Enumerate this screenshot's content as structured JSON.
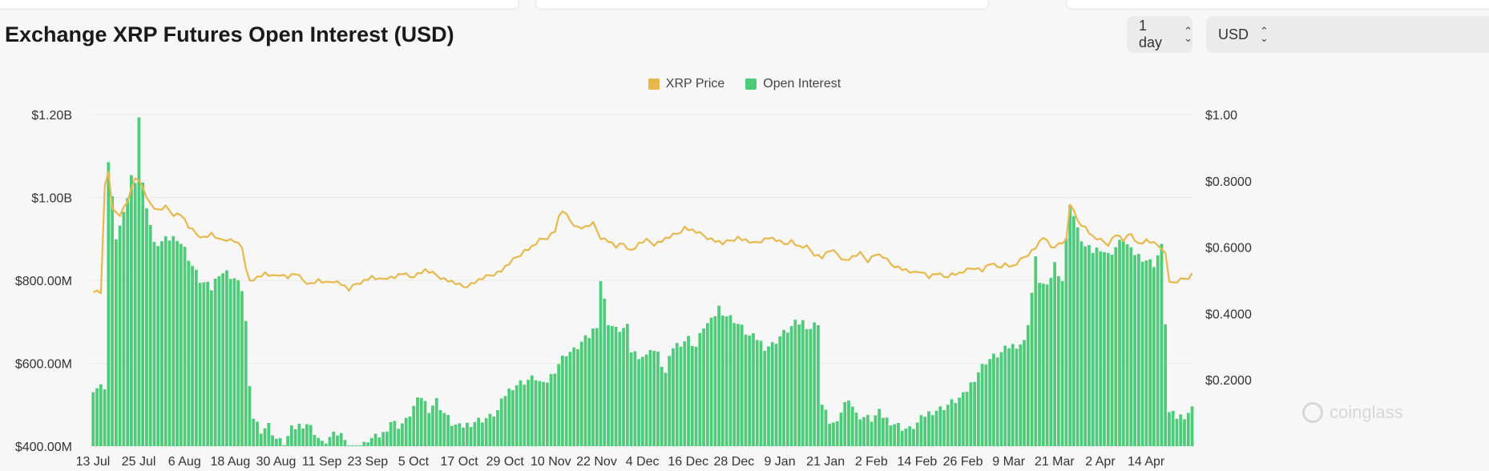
{
  "title": "Exchange XRP Futures Open Interest (USD)",
  "controls": {
    "interval": {
      "value": "1 day"
    },
    "currency": {
      "value": "USD"
    }
  },
  "icons": {
    "select": "chevron-up-down-icon"
  },
  "watermark": {
    "text": "coinglass"
  },
  "colors": {
    "price": "#e8b84d",
    "open_interest": "#4dcb78",
    "background": "#f7f7f7"
  },
  "chart_data": {
    "type": "bar",
    "title": "Exchange XRP Futures Open Interest (USD)",
    "legend": {
      "position": "top-center",
      "entries": [
        "XRP Price",
        "Open Interest"
      ]
    },
    "grid": true,
    "x_ticks": [
      "13 Jul",
      "25 Jul",
      "6 Aug",
      "18 Aug",
      "30 Aug",
      "11 Sep",
      "23 Sep",
      "5 Oct",
      "17 Oct",
      "29 Oct",
      "10 Nov",
      "22 Nov",
      "4 Dec",
      "16 Dec",
      "28 Dec",
      "9 Jan",
      "21 Jan",
      "2 Feb",
      "14 Feb",
      "26 Feb",
      "9 Mar",
      "21 Mar",
      "2 Apr",
      "14 Apr"
    ],
    "y_left": {
      "ticks": [
        "$400.00M",
        "$600.00M",
        "$800.00M",
        "$1.00B",
        "$1.20B"
      ],
      "tick_values": [
        400,
        600,
        800,
        1000,
        1200
      ],
      "range": [
        400,
        1200
      ],
      "unit": "M USD"
    },
    "y_right": {
      "ticks": [
        "$0.2000",
        "$0.4000",
        "$0.6000",
        "$0.8000",
        "$1.00"
      ],
      "tick_values": [
        0.2,
        0.4,
        0.6,
        0.8,
        1.0
      ],
      "range": [
        0,
        1.0
      ],
      "unit": "USD"
    },
    "start_date": "2023-07-13",
    "open_interest_knots": [
      [
        0,
        540
      ],
      [
        3,
        545
      ],
      [
        4,
        1085
      ],
      [
        6,
        905
      ],
      [
        8,
        955
      ],
      [
        10,
        1050
      ],
      [
        11,
        1045
      ],
      [
        12,
        1195
      ],
      [
        13,
        1030
      ],
      [
        16,
        885
      ],
      [
        20,
        900
      ],
      [
        22,
        905
      ],
      [
        24,
        875
      ],
      [
        26,
        835
      ],
      [
        28,
        800
      ],
      [
        31,
        780
      ],
      [
        33,
        820
      ],
      [
        35,
        818
      ],
      [
        37,
        805
      ],
      [
        39,
        780
      ],
      [
        40,
        700
      ],
      [
        41,
        535
      ],
      [
        42,
        470
      ],
      [
        44,
        440
      ],
      [
        46,
        450
      ],
      [
        48,
        418
      ],
      [
        50,
        405
      ],
      [
        52,
        440
      ],
      [
        54,
        450
      ],
      [
        56,
        455
      ],
      [
        58,
        435
      ],
      [
        60,
        405
      ],
      [
        62,
        420
      ],
      [
        64,
        430
      ],
      [
        66,
        425
      ],
      [
        67,
        400
      ],
      [
        68,
        380
      ],
      [
        70,
        390
      ],
      [
        72,
        415
      ],
      [
        74,
        420
      ],
      [
        76,
        430
      ],
      [
        78,
        460
      ],
      [
        80,
        450
      ],
      [
        82,
        460
      ],
      [
        84,
        495
      ],
      [
        86,
        520
      ],
      [
        88,
        490
      ],
      [
        90,
        510
      ],
      [
        92,
        480
      ],
      [
        94,
        455
      ],
      [
        96,
        445
      ],
      [
        100,
        460
      ],
      [
        104,
        470
      ],
      [
        106,
        485
      ],
      [
        108,
        525
      ],
      [
        110,
        545
      ],
      [
        114,
        560
      ],
      [
        116,
        565
      ],
      [
        118,
        545
      ],
      [
        120,
        570
      ],
      [
        122,
        600
      ],
      [
        124,
        625
      ],
      [
        126,
        630
      ],
      [
        128,
        650
      ],
      [
        130,
        665
      ],
      [
        132,
        695
      ],
      [
        133,
        800
      ],
      [
        135,
        700
      ],
      [
        137,
        680
      ],
      [
        140,
        685
      ],
      [
        141,
        630
      ],
      [
        143,
        620
      ],
      [
        145,
        615
      ],
      [
        146,
        640
      ],
      [
        148,
        620
      ],
      [
        150,
        575
      ],
      [
        152,
        640
      ],
      [
        154,
        650
      ],
      [
        156,
        660
      ],
      [
        158,
        640
      ],
      [
        160,
        690
      ],
      [
        162,
        700
      ],
      [
        164,
        735
      ],
      [
        166,
        715
      ],
      [
        168,
        705
      ],
      [
        170,
        685
      ],
      [
        172,
        665
      ],
      [
        174,
        660
      ],
      [
        176,
        640
      ],
      [
        178,
        645
      ],
      [
        180,
        665
      ],
      [
        182,
        680
      ],
      [
        184,
        695
      ],
      [
        186,
        700
      ],
      [
        188,
        685
      ],
      [
        190,
        700
      ],
      [
        191,
        500
      ],
      [
        193,
        460
      ],
      [
        195,
        450
      ],
      [
        196,
        485
      ],
      [
        198,
        520
      ],
      [
        200,
        475
      ],
      [
        202,
        470
      ],
      [
        204,
        465
      ],
      [
        206,
        480
      ],
      [
        208,
        465
      ],
      [
        210,
        455
      ],
      [
        212,
        445
      ],
      [
        214,
        440
      ],
      [
        216,
        455
      ],
      [
        218,
        475
      ],
      [
        220,
        485
      ],
      [
        222,
        490
      ],
      [
        224,
        500
      ],
      [
        226,
        510
      ],
      [
        228,
        520
      ],
      [
        230,
        550
      ],
      [
        232,
        580
      ],
      [
        234,
        605
      ],
      [
        236,
        615
      ],
      [
        238,
        625
      ],
      [
        240,
        640
      ],
      [
        242,
        645
      ],
      [
        244,
        650
      ],
      [
        245,
        700
      ],
      [
        246,
        770
      ],
      [
        247,
        850
      ],
      [
        248,
        800
      ],
      [
        250,
        780
      ],
      [
        252,
        840
      ],
      [
        254,
        800
      ],
      [
        256,
        990
      ],
      [
        258,
        920
      ],
      [
        260,
        880
      ],
      [
        262,
        870
      ],
      [
        264,
        880
      ],
      [
        266,
        860
      ],
      [
        268,
        880
      ],
      [
        270,
        900
      ],
      [
        272,
        870
      ],
      [
        274,
        860
      ],
      [
        276,
        850
      ],
      [
        278,
        840
      ],
      [
        280,
        880
      ],
      [
        281,
        700
      ],
      [
        282,
        480
      ],
      [
        284,
        470
      ],
      [
        286,
        475
      ],
      [
        288,
        490
      ]
    ],
    "xrp_price_knots": [
      [
        0,
        0.47
      ],
      [
        2,
        0.465
      ],
      [
        3,
        0.78
      ],
      [
        4,
        0.83
      ],
      [
        5,
        0.71
      ],
      [
        7,
        0.7
      ],
      [
        9,
        0.74
      ],
      [
        11,
        0.81
      ],
      [
        13,
        0.78
      ],
      [
        15,
        0.73
      ],
      [
        17,
        0.71
      ],
      [
        19,
        0.72
      ],
      [
        21,
        0.7
      ],
      [
        23,
        0.7
      ],
      [
        25,
        0.66
      ],
      [
        27,
        0.64
      ],
      [
        29,
        0.63
      ],
      [
        31,
        0.64
      ],
      [
        33,
        0.62
      ],
      [
        35,
        0.625
      ],
      [
        37,
        0.62
      ],
      [
        39,
        0.6
      ],
      [
        40,
        0.53
      ],
      [
        41,
        0.5
      ],
      [
        43,
        0.51
      ],
      [
        45,
        0.52
      ],
      [
        47,
        0.51
      ],
      [
        49,
        0.52
      ],
      [
        51,
        0.51
      ],
      [
        53,
        0.52
      ],
      [
        55,
        0.5
      ],
      [
        57,
        0.49
      ],
      [
        59,
        0.5
      ],
      [
        61,
        0.49
      ],
      [
        63,
        0.5
      ],
      [
        65,
        0.49
      ],
      [
        67,
        0.47
      ],
      [
        69,
        0.49
      ],
      [
        71,
        0.5
      ],
      [
        73,
        0.51
      ],
      [
        75,
        0.5
      ],
      [
        77,
        0.51
      ],
      [
        79,
        0.51
      ],
      [
        81,
        0.52
      ],
      [
        83,
        0.51
      ],
      [
        85,
        0.52
      ],
      [
        87,
        0.53
      ],
      [
        89,
        0.52
      ],
      [
        91,
        0.51
      ],
      [
        93,
        0.5
      ],
      [
        95,
        0.49
      ],
      [
        97,
        0.48
      ],
      [
        99,
        0.49
      ],
      [
        101,
        0.5
      ],
      [
        103,
        0.51
      ],
      [
        105,
        0.52
      ],
      [
        107,
        0.53
      ],
      [
        109,
        0.55
      ],
      [
        111,
        0.57
      ],
      [
        113,
        0.59
      ],
      [
        115,
        0.6
      ],
      [
        117,
        0.62
      ],
      [
        119,
        0.63
      ],
      [
        121,
        0.65
      ],
      [
        122,
        0.69
      ],
      [
        123,
        0.71
      ],
      [
        125,
        0.68
      ],
      [
        127,
        0.66
      ],
      [
        129,
        0.66
      ],
      [
        131,
        0.67
      ],
      [
        133,
        0.63
      ],
      [
        135,
        0.62
      ],
      [
        137,
        0.6
      ],
      [
        139,
        0.61
      ],
      [
        141,
        0.59
      ],
      [
        143,
        0.61
      ],
      [
        145,
        0.62
      ],
      [
        147,
        0.61
      ],
      [
        149,
        0.62
      ],
      [
        151,
        0.63
      ],
      [
        153,
        0.64
      ],
      [
        155,
        0.66
      ],
      [
        157,
        0.65
      ],
      [
        159,
        0.64
      ],
      [
        161,
        0.63
      ],
      [
        163,
        0.62
      ],
      [
        165,
        0.61
      ],
      [
        167,
        0.62
      ],
      [
        169,
        0.63
      ],
      [
        171,
        0.62
      ],
      [
        173,
        0.61
      ],
      [
        175,
        0.62
      ],
      [
        177,
        0.63
      ],
      [
        179,
        0.62
      ],
      [
        181,
        0.61
      ],
      [
        183,
        0.62
      ],
      [
        185,
        0.6
      ],
      [
        187,
        0.6
      ],
      [
        189,
        0.58
      ],
      [
        191,
        0.57
      ],
      [
        193,
        0.59
      ],
      [
        195,
        0.58
      ],
      [
        197,
        0.56
      ],
      [
        199,
        0.57
      ],
      [
        201,
        0.58
      ],
      [
        203,
        0.56
      ],
      [
        205,
        0.58
      ],
      [
        207,
        0.57
      ],
      [
        209,
        0.55
      ],
      [
        211,
        0.54
      ],
      [
        213,
        0.53
      ],
      [
        215,
        0.52
      ],
      [
        217,
        0.53
      ],
      [
        219,
        0.51
      ],
      [
        221,
        0.52
      ],
      [
        223,
        0.51
      ],
      [
        225,
        0.52
      ],
      [
        227,
        0.52
      ],
      [
        229,
        0.53
      ],
      [
        231,
        0.54
      ],
      [
        233,
        0.53
      ],
      [
        235,
        0.55
      ],
      [
        237,
        0.54
      ],
      [
        239,
        0.55
      ],
      [
        241,
        0.54
      ],
      [
        243,
        0.56
      ],
      [
        245,
        0.58
      ],
      [
        247,
        0.6
      ],
      [
        249,
        0.63
      ],
      [
        251,
        0.6
      ],
      [
        253,
        0.61
      ],
      [
        255,
        0.62
      ],
      [
        256,
        0.73
      ],
      [
        258,
        0.68
      ],
      [
        260,
        0.66
      ],
      [
        262,
        0.63
      ],
      [
        264,
        0.62
      ],
      [
        266,
        0.61
      ],
      [
        268,
        0.64
      ],
      [
        270,
        0.62
      ],
      [
        272,
        0.64
      ],
      [
        274,
        0.61
      ],
      [
        276,
        0.62
      ],
      [
        278,
        0.61
      ],
      [
        280,
        0.6
      ],
      [
        281,
        0.58
      ],
      [
        282,
        0.5
      ],
      [
        283,
        0.49
      ],
      [
        285,
        0.5
      ],
      [
        287,
        0.51
      ],
      [
        288,
        0.52
      ]
    ]
  }
}
